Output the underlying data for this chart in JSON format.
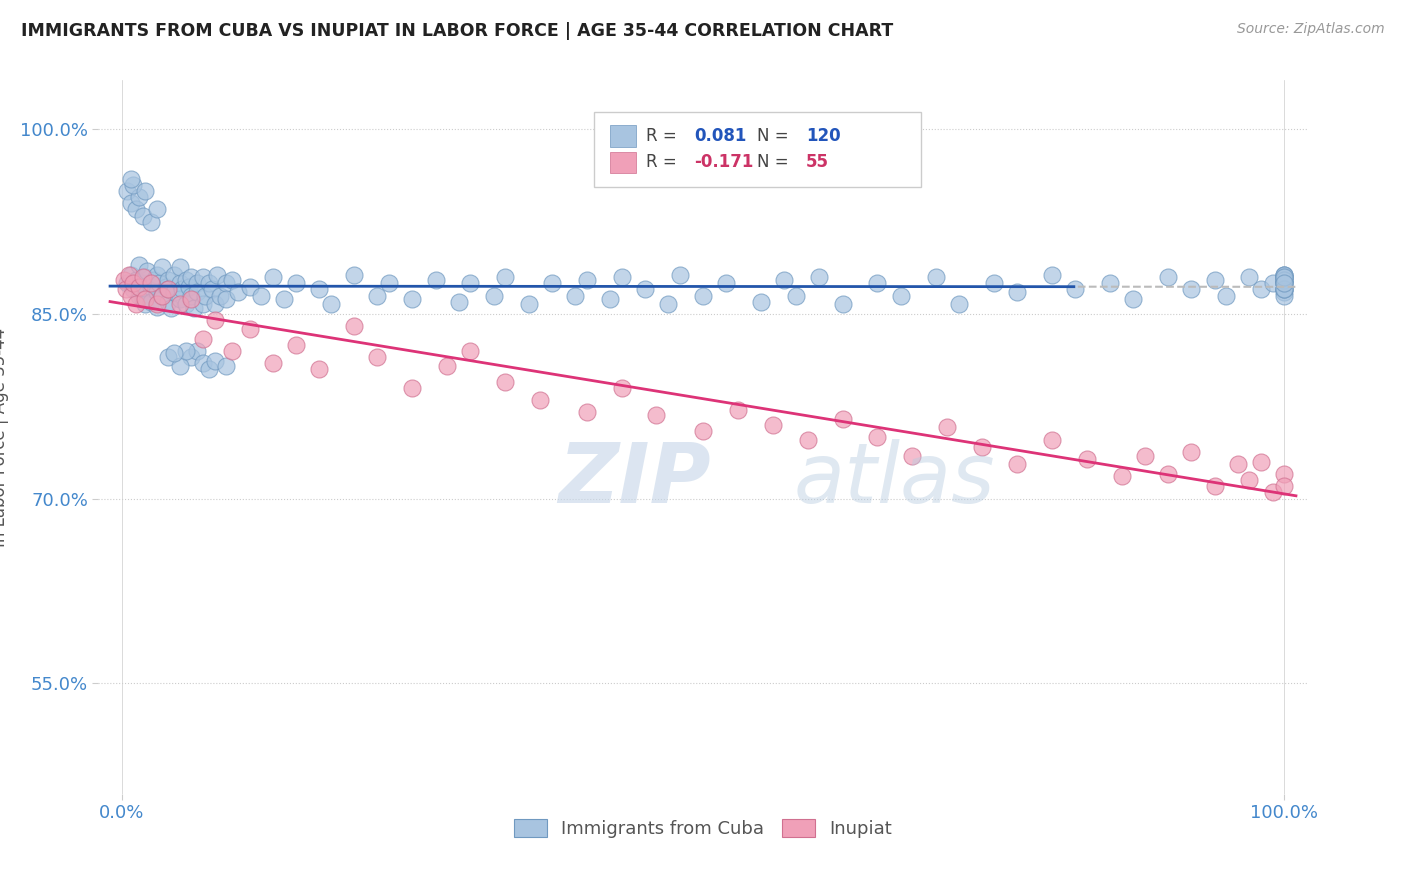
{
  "title": "IMMIGRANTS FROM CUBA VS INUPIAT IN LABOR FORCE | AGE 35-44 CORRELATION CHART",
  "source_text": "Source: ZipAtlas.com",
  "ylabel": "In Labor Force | Age 35-44",
  "xlim": [
    -0.02,
    1.02
  ],
  "ylim": [
    0.46,
    1.04
  ],
  "xtick_labels": [
    "0.0%",
    "100.0%"
  ],
  "xtick_positions": [
    0.0,
    1.0
  ],
  "ytick_labels": [
    "55.0%",
    "70.0%",
    "85.0%",
    "100.0%"
  ],
  "ytick_positions": [
    0.55,
    0.7,
    0.85,
    1.0
  ],
  "background_color": "#ffffff",
  "grid_color": "#cccccc",
  "watermark_zip": "ZIP",
  "watermark_atlas": "atlas",
  "cuba_R": 0.081,
  "cuba_N": 120,
  "inupiat_R": -0.171,
  "inupiat_N": 55,
  "cuba_color": "#a8c4e0",
  "cuba_edge_color": "#7099c0",
  "inupiat_color": "#f0a0b8",
  "inupiat_edge_color": "#d07090",
  "cuba_line_color": "#2255aa",
  "inupiat_line_color": "#dd3377",
  "dashed_line_color": "#bbbbbb",
  "dashed_line_y": 0.876,
  "legend_text_color_blue": "#2255bb",
  "legend_text_color_pink": "#cc3366",
  "cuba_x": [
    0.005,
    0.008,
    0.01,
    0.012,
    0.015,
    0.015,
    0.018,
    0.018,
    0.02,
    0.02,
    0.02,
    0.022,
    0.025,
    0.025,
    0.028,
    0.03,
    0.03,
    0.03,
    0.032,
    0.035,
    0.035,
    0.038,
    0.04,
    0.04,
    0.04,
    0.042,
    0.045,
    0.045,
    0.05,
    0.05,
    0.05,
    0.052,
    0.055,
    0.055,
    0.058,
    0.06,
    0.06,
    0.062,
    0.065,
    0.065,
    0.07,
    0.07,
    0.072,
    0.075,
    0.078,
    0.08,
    0.082,
    0.085,
    0.09,
    0.09,
    0.095,
    0.1,
    0.11,
    0.12,
    0.13,
    0.14,
    0.15,
    0.17,
    0.18,
    0.2,
    0.22,
    0.23,
    0.25,
    0.27,
    0.29,
    0.3,
    0.32,
    0.33,
    0.35,
    0.37,
    0.39,
    0.4,
    0.42,
    0.43,
    0.45,
    0.47,
    0.48,
    0.5,
    0.52,
    0.55,
    0.57,
    0.58,
    0.6,
    0.62,
    0.65,
    0.67,
    0.7,
    0.72,
    0.75,
    0.77,
    0.8,
    0.82,
    0.85,
    0.87,
    0.9,
    0.92,
    0.94,
    0.95,
    0.97,
    0.98,
    0.99,
    1.0,
    1.0,
    1.0,
    1.0,
    1.0,
    1.0,
    1.0,
    1.0,
    1.0,
    1.0,
    1.0,
    1.0,
    1.0,
    1.0,
    1.0,
    1.0,
    1.0,
    1.0,
    1.0
  ],
  "cuba_y": [
    0.875,
    0.882,
    0.87,
    0.878,
    0.865,
    0.89,
    0.875,
    0.862,
    0.88,
    0.87,
    0.858,
    0.885,
    0.872,
    0.86,
    0.878,
    0.868,
    0.882,
    0.856,
    0.875,
    0.865,
    0.888,
    0.872,
    0.86,
    0.878,
    0.87,
    0.855,
    0.882,
    0.868,
    0.875,
    0.862,
    0.888,
    0.87,
    0.878,
    0.858,
    0.872,
    0.865,
    0.88,
    0.855,
    0.875,
    0.868,
    0.858,
    0.88,
    0.865,
    0.875,
    0.87,
    0.858,
    0.882,
    0.865,
    0.875,
    0.862,
    0.878,
    0.868,
    0.872,
    0.865,
    0.88,
    0.862,
    0.875,
    0.87,
    0.858,
    0.882,
    0.865,
    0.875,
    0.862,
    0.878,
    0.86,
    0.875,
    0.865,
    0.88,
    0.858,
    0.875,
    0.865,
    0.878,
    0.862,
    0.88,
    0.87,
    0.858,
    0.882,
    0.865,
    0.875,
    0.86,
    0.878,
    0.865,
    0.88,
    0.858,
    0.875,
    0.865,
    0.88,
    0.858,
    0.875,
    0.868,
    0.882,
    0.87,
    0.875,
    0.862,
    0.88,
    0.87,
    0.878,
    0.865,
    0.88,
    0.87,
    0.875,
    0.882,
    0.87,
    0.878,
    0.868,
    0.88,
    0.875,
    0.87,
    0.882,
    0.875,
    0.878,
    0.865,
    0.88,
    0.87,
    0.875,
    0.882,
    0.878,
    0.87,
    0.88,
    0.875
  ],
  "cuba_y_extra": [
    0.95,
    0.94,
    0.935,
    0.945,
    0.93,
    0.955,
    0.96,
    0.925,
    0.935,
    0.95,
    0.815,
    0.82,
    0.81,
    0.805,
    0.815,
    0.808,
    0.82,
    0.812,
    0.808,
    0.818
  ],
  "cuba_x_extra": [
    0.005,
    0.008,
    0.012,
    0.015,
    0.018,
    0.01,
    0.008,
    0.025,
    0.03,
    0.02,
    0.06,
    0.065,
    0.07,
    0.075,
    0.04,
    0.05,
    0.055,
    0.08,
    0.09,
    0.045
  ],
  "inupiat_x": [
    0.002,
    0.004,
    0.006,
    0.008,
    0.01,
    0.012,
    0.015,
    0.018,
    0.02,
    0.025,
    0.03,
    0.035,
    0.04,
    0.05,
    0.06,
    0.07,
    0.08,
    0.095,
    0.11,
    0.13,
    0.15,
    0.17,
    0.2,
    0.22,
    0.25,
    0.28,
    0.3,
    0.33,
    0.36,
    0.4,
    0.43,
    0.46,
    0.5,
    0.53,
    0.56,
    0.59,
    0.62,
    0.65,
    0.68,
    0.71,
    0.74,
    0.77,
    0.8,
    0.83,
    0.86,
    0.88,
    0.9,
    0.92,
    0.94,
    0.96,
    0.97,
    0.98,
    0.99,
    1.0,
    1.0
  ],
  "inupiat_y": [
    0.878,
    0.87,
    0.882,
    0.865,
    0.875,
    0.858,
    0.872,
    0.88,
    0.862,
    0.875,
    0.858,
    0.865,
    0.87,
    0.858,
    0.862,
    0.83,
    0.845,
    0.82,
    0.838,
    0.81,
    0.825,
    0.805,
    0.84,
    0.815,
    0.79,
    0.808,
    0.82,
    0.795,
    0.78,
    0.77,
    0.79,
    0.768,
    0.755,
    0.772,
    0.76,
    0.748,
    0.765,
    0.75,
    0.735,
    0.758,
    0.742,
    0.728,
    0.748,
    0.732,
    0.718,
    0.735,
    0.72,
    0.738,
    0.71,
    0.728,
    0.715,
    0.73,
    0.705,
    0.72,
    0.71
  ]
}
